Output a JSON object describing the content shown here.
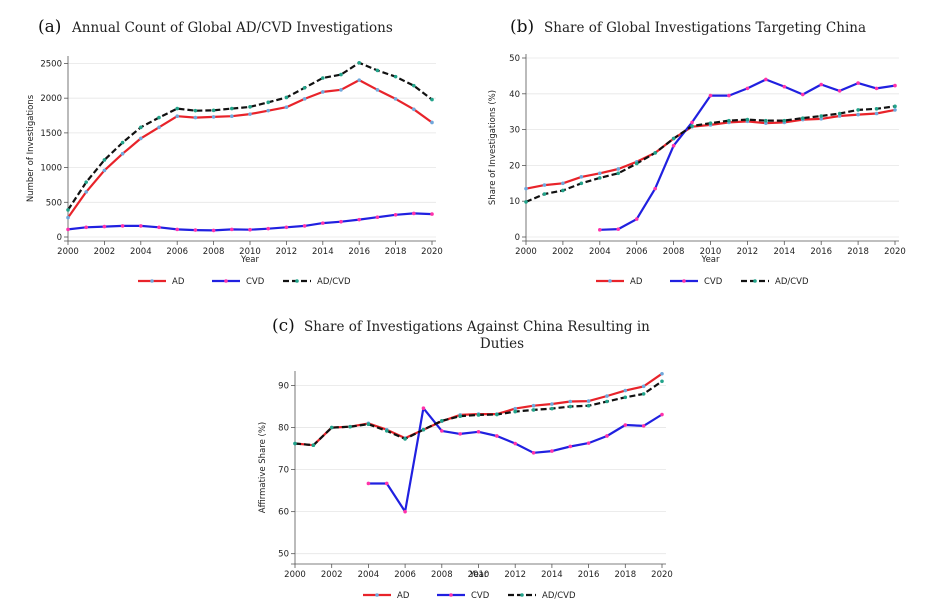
{
  "colors": {
    "AD": "#e8232a",
    "CVD": "#2020e0",
    "ADCVD": "#111111",
    "ad_marker": "#6fa8dc",
    "cvd_marker": "#ff33aa",
    "adcvd_marker": "#22a38a"
  },
  "legend_labels": [
    "AD",
    "CVD",
    "AD/CVD"
  ],
  "chart_data": [
    {
      "id": "a",
      "letter": "(a)",
      "title": "Annual Count of Global AD/CVD Investigations",
      "type": "line",
      "xlabel": "Year",
      "ylabel": "Number of Investigations",
      "xlim": [
        2000,
        2020
      ],
      "ylim": [
        0,
        2550
      ],
      "xticks": [
        "2000",
        "2002",
        "2004",
        "2006",
        "2008",
        "2010",
        "2012",
        "2014",
        "2016",
        "2018",
        "2020"
      ],
      "yticks": [
        "0",
        "500",
        "1000",
        "1500",
        "2000",
        "2500"
      ],
      "legend_position": "bottom",
      "series": [
        {
          "name": "AD",
          "x": [
            2000,
            2001,
            2002,
            2003,
            2004,
            2005,
            2006,
            2007,
            2008,
            2009,
            2010,
            2011,
            2012,
            2013,
            2014,
            2015,
            2016,
            2017,
            2018,
            2019,
            2020
          ],
          "values": [
            280,
            650,
            960,
            1200,
            1420,
            1580,
            1740,
            1720,
            1730,
            1740,
            1770,
            1820,
            1870,
            1990,
            2090,
            2120,
            2260,
            2120,
            1990,
            1840,
            1650
          ]
        },
        {
          "name": "CVD",
          "x": [
            2000,
            2001,
            2002,
            2003,
            2004,
            2005,
            2006,
            2007,
            2008,
            2009,
            2010,
            2011,
            2012,
            2013,
            2014,
            2015,
            2016,
            2017,
            2018,
            2019,
            2020
          ],
          "values": [
            110,
            140,
            150,
            160,
            160,
            140,
            110,
            100,
            95,
            110,
            105,
            120,
            140,
            160,
            200,
            220,
            250,
            285,
            320,
            340,
            330
          ]
        },
        {
          "name": "AD/CVD",
          "x": [
            2000,
            2001,
            2002,
            2003,
            2004,
            2005,
            2006,
            2007,
            2008,
            2009,
            2010,
            2011,
            2012,
            2013,
            2014,
            2015,
            2016,
            2017,
            2018,
            2019,
            2020
          ],
          "values": [
            390,
            790,
            1110,
            1360,
            1580,
            1720,
            1850,
            1820,
            1825,
            1850,
            1875,
            1940,
            2010,
            2150,
            2290,
            2340,
            2510,
            2400,
            2310,
            2180,
            1980
          ]
        }
      ]
    },
    {
      "id": "b",
      "letter": "(b)",
      "title": "Share of Global Investigations Targeting China",
      "type": "line",
      "xlabel": "Year",
      "ylabel": "Share of Investigations (%)",
      "xlim": [
        2000,
        2020
      ],
      "ylim": [
        0,
        50
      ],
      "xticks": [
        "2000",
        "2002",
        "2004",
        "2006",
        "2008",
        "2010",
        "2012",
        "2014",
        "2016",
        "2018",
        "2020"
      ],
      "yticks": [
        "0",
        "10",
        "20",
        "30",
        "40",
        "50"
      ],
      "legend_position": "bottom",
      "series": [
        {
          "name": "AD",
          "x": [
            2000,
            2001,
            2002,
            2003,
            2004,
            2005,
            2006,
            2007,
            2008,
            2009,
            2010,
            2011,
            2012,
            2013,
            2014,
            2015,
            2016,
            2017,
            2018,
            2019,
            2020
          ],
          "values": [
            13.5,
            14.5,
            15,
            16.8,
            17.8,
            19,
            21,
            23.5,
            27.5,
            30.8,
            31.3,
            32,
            32.3,
            31.8,
            32,
            32.8,
            33,
            33.8,
            34.2,
            34.5,
            35.5
          ]
        },
        {
          "name": "CVD",
          "x": [
            2004,
            2005,
            2006,
            2007,
            2008,
            2009,
            2010,
            2011,
            2012,
            2013,
            2014,
            2015,
            2016,
            2017,
            2018,
            2019,
            2020
          ],
          "values": [
            2,
            2.2,
            5,
            13.5,
            25.5,
            32,
            39.5,
            39.5,
            41.5,
            44,
            42,
            39.8,
            42.6,
            40.8,
            43,
            41.5,
            42.3
          ]
        },
        {
          "name": "AD/CVD",
          "x": [
            2000,
            2001,
            2002,
            2003,
            2004,
            2005,
            2006,
            2007,
            2008,
            2009,
            2010,
            2011,
            2012,
            2013,
            2014,
            2015,
            2016,
            2017,
            2018,
            2019,
            2020
          ],
          "values": [
            9.8,
            12,
            13,
            15,
            16.5,
            17.8,
            20.5,
            23.5,
            27.5,
            31,
            31.8,
            32.5,
            32.8,
            32.5,
            32.5,
            33.2,
            33.8,
            34.5,
            35.5,
            35.8,
            36.5
          ]
        }
      ]
    },
    {
      "id": "c",
      "letter": "(c)",
      "title": "Share of Investigations Against China Resulting in Duties",
      "type": "line",
      "xlabel": "Year",
      "ylabel": "Affirmative Share (%)",
      "xlim": [
        2000,
        2020
      ],
      "ylim": [
        48.5,
        92.5
      ],
      "xticks": [
        "2000",
        "2002",
        "2004",
        "2006",
        "2008",
        "2010",
        "2012",
        "2014",
        "2016",
        "2018",
        "2020"
      ],
      "yticks": [
        "50",
        "60",
        "70",
        "80",
        "90"
      ],
      "legend_position": "bottom",
      "series": [
        {
          "name": "AD",
          "x": [
            2000,
            2001,
            2002,
            2003,
            2004,
            2005,
            2006,
            2007,
            2008,
            2009,
            2010,
            2011,
            2012,
            2013,
            2014,
            2015,
            2016,
            2017,
            2018,
            2019,
            2020
          ],
          "values": [
            76.2,
            75.8,
            80,
            80.2,
            81,
            79.5,
            77.5,
            79.5,
            81.5,
            83,
            83.2,
            83.2,
            84.5,
            85.2,
            85.6,
            86.2,
            86.3,
            87.5,
            88.8,
            89.8,
            92.8
          ]
        },
        {
          "name": "CVD",
          "x": [
            2004,
            2005,
            2006,
            2007,
            2008,
            2009,
            2010,
            2011,
            2012,
            2013,
            2014,
            2015,
            2016,
            2017,
            2018,
            2019,
            2020
          ],
          "values": [
            66.7,
            66.7,
            60,
            84.6,
            79.2,
            78.5,
            79,
            78,
            76.2,
            74,
            74.4,
            75.5,
            76.3,
            78,
            80.6,
            80.4,
            83.1
          ]
        },
        {
          "name": "AD/CVD",
          "x": [
            2000,
            2001,
            2002,
            2003,
            2004,
            2005,
            2006,
            2007,
            2008,
            2009,
            2010,
            2011,
            2012,
            2013,
            2014,
            2015,
            2016,
            2017,
            2018,
            2019,
            2020
          ],
          "values": [
            76.2,
            75.8,
            80,
            80.2,
            80.8,
            79.2,
            77.3,
            79.5,
            81.6,
            82.7,
            83,
            83.1,
            83.8,
            84.2,
            84.5,
            85,
            85.2,
            86.2,
            87.2,
            88,
            91
          ]
        }
      ]
    }
  ]
}
